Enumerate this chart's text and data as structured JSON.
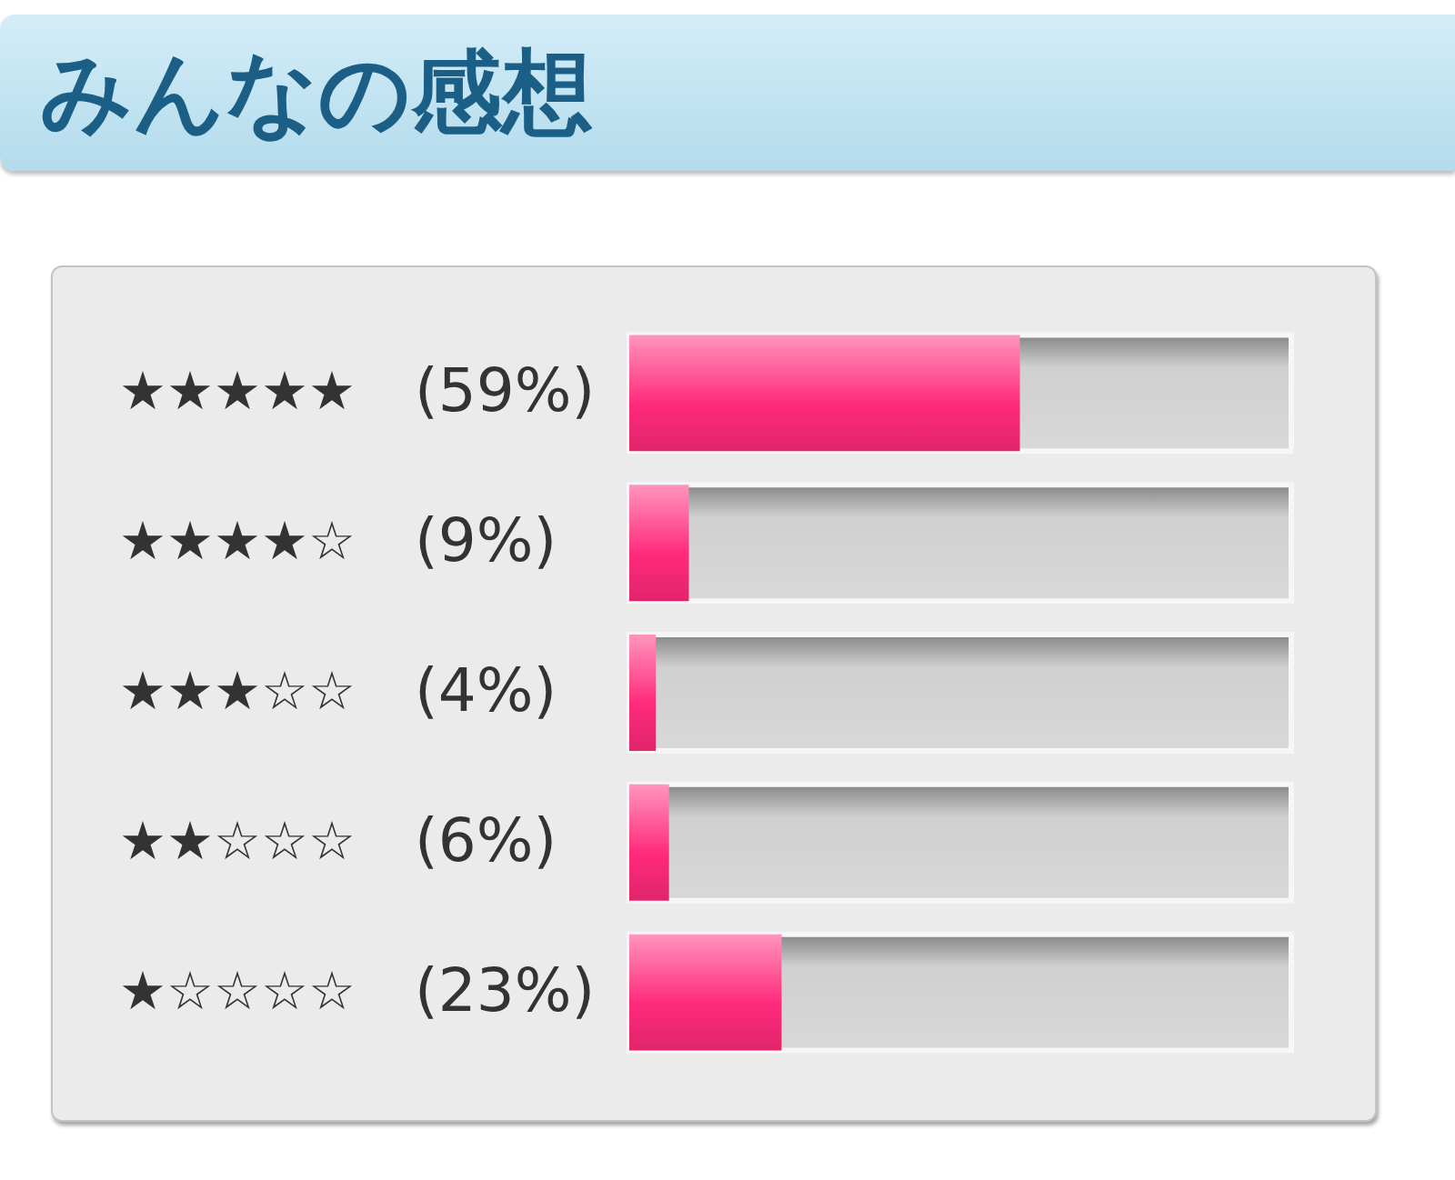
{
  "chart_data": {
    "type": "bar",
    "orientation": "horizontal",
    "title": "みんなの感想",
    "categories": [
      "★★★★★",
      "★★★★☆",
      "★★★☆☆",
      "★★☆☆☆",
      "★☆☆☆☆"
    ],
    "values": [
      59,
      9,
      4,
      6,
      23
    ],
    "value_labels": [
      "(59%)",
      "(9%)",
      "(4%)",
      "(6%)",
      "(23%)"
    ],
    "color": "#ff2a7a",
    "xlim": [
      0,
      100
    ],
    "tick_labels": "y"
  }
}
